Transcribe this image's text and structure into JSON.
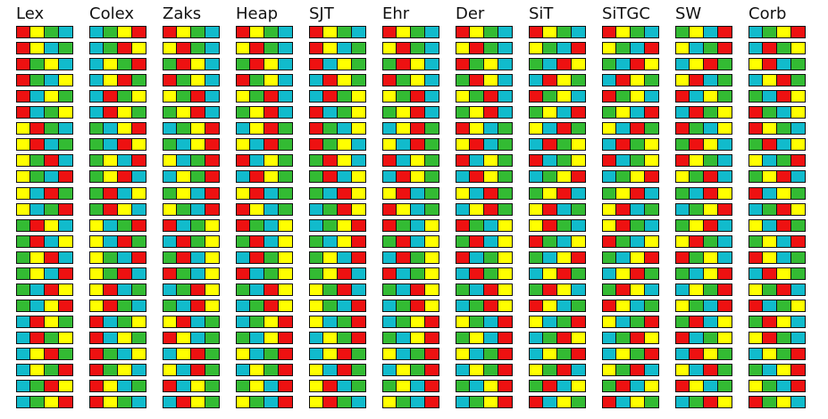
{
  "palette": {
    "R": "#ee1111",
    "Y": "#ffff00",
    "G": "#33bb33",
    "C": "#11bbcc",
    "border": "#111111"
  },
  "columns": [
    {
      "title": "Lex",
      "perms": [
        "RYGC",
        "RYCG",
        "RGYC",
        "RGCY",
        "RCYG",
        "RCGY",
        "YRGC",
        "YRCG",
        "YGRC",
        "YGCR",
        "YCRG",
        "YCGR",
        "GRYC",
        "GRCY",
        "GYRC",
        "GYCR",
        "GCRY",
        "GCYR",
        "CRYG",
        "CRGY",
        "CYRG",
        "CYGR",
        "CGRY",
        "CGYR"
      ]
    },
    {
      "title": "Colex",
      "perms": [
        "CGYR",
        "CGRY",
        "CYGR",
        "CYRG",
        "CRGY",
        "CRYG",
        "GCYR",
        "GCRY",
        "GYCR",
        "GYRC",
        "GRCY",
        "GRYC",
        "YCGR",
        "YCRG",
        "YGCR",
        "YGRC",
        "YRCG",
        "YRGC",
        "RCGY",
        "RCYG",
        "RGCY",
        "RGYC",
        "RYCG",
        "RYGC"
      ]
    },
    {
      "title": "Zaks",
      "perms": [
        "RYGC",
        "YRGC",
        "GRYC",
        "RGYC",
        "YGRC",
        "GYRC",
        "CGYR",
        "GCYR",
        "YCGR",
        "CYGR",
        "GYCR",
        "YGCR",
        "RCGY",
        "CRGY",
        "GRCY",
        "RGCY",
        "CGRY",
        "GCRY",
        "YRCG",
        "RYCG",
        "CYRG",
        "YCRG",
        "RCYG",
        "CRYG"
      ]
    },
    {
      "title": "Heap",
      "perms": [
        "RYGC",
        "YRGC",
        "GRYC",
        "RGYC",
        "YGRC",
        "GYRC",
        "CYRG",
        "YCRG",
        "RCYG",
        "CRYG",
        "YRCG",
        "RYCG",
        "RGCY",
        "GRCY",
        "CRGY",
        "RCGY",
        "GCRY",
        "CGRY",
        "CGYR",
        "GCYR",
        "YCGR",
        "CYGR",
        "GYCR",
        "YGCR"
      ]
    },
    {
      "title": "SJT",
      "perms": [
        "RYGC",
        "RYCG",
        "RCYG",
        "CRYG",
        "CRGY",
        "RCGY",
        "RGCY",
        "RGYC",
        "GRYC",
        "GRCY",
        "GCRY",
        "CGRY",
        "CGYR",
        "GCYR",
        "GYCR",
        "GYRC",
        "YGRC",
        "YGCR",
        "YCGR",
        "CYGR",
        "CYRG",
        "YCRG",
        "YRCG",
        "YRGC"
      ]
    },
    {
      "title": "Ehr",
      "perms": [
        "RYGC",
        "YRGC",
        "GRYC",
        "RGYC",
        "YGRC",
        "GYRC",
        "CYRG",
        "YCRG",
        "RCYG",
        "CRYG",
        "YRCG",
        "RYCG",
        "RGCY",
        "GRCY",
        "CRGY",
        "RCGY",
        "GCRY",
        "CGRY",
        "CGYR",
        "GCYR",
        "YCGR",
        "CYGR",
        "GYCR",
        "YGCR"
      ]
    },
    {
      "title": "Der",
      "perms": [
        "RYGC",
        "YRGC",
        "RGYC",
        "GRYC",
        "YGRC",
        "GYRC",
        "RYCG",
        "YRCG",
        "RCYG",
        "CRYG",
        "YCRG",
        "CYRG",
        "RGCY",
        "GRCY",
        "RCGY",
        "CRGY",
        "GCRY",
        "CGRY",
        "YGCR",
        "GYCR",
        "YCGR",
        "CYGR",
        "GCYR",
        "CGYR"
      ]
    },
    {
      "title": "SiT",
      "perms": [
        "RYGC",
        "YGCR",
        "GCRY",
        "CRYG",
        "RGYC",
        "GYCR",
        "YCRG",
        "CRGY",
        "RCGY",
        "CGYR",
        "GYRC",
        "YRCG",
        "YRGC",
        "RGCY",
        "GCYR",
        "CYRG",
        "GRYC",
        "RYCG",
        "YCGR",
        "CGRY",
        "CYGR",
        "YGRC",
        "GRCY",
        "RCYG"
      ]
    },
    {
      "title": "SiTGC",
      "perms": [
        "RYGC",
        "YGCR",
        "GCRY",
        "CRYG",
        "RGYC",
        "GYCR",
        "YCRG",
        "CRGY",
        "RCGY",
        "CGYR",
        "GYRC",
        "YRCG",
        "YRGC",
        "RGCY",
        "GCYR",
        "CYRG",
        "GRYC",
        "RYCG",
        "YCGR",
        "CGRY",
        "CYGR",
        "YGRC",
        "GRCY",
        "RCYG"
      ]
    },
    {
      "title": "SW",
      "perms": [
        "GYCR",
        "YCGR",
        "CYRG",
        "YRCG",
        "RCYG",
        "CRGY",
        "RGCY",
        "GRYC",
        "RYGC",
        "YGRC",
        "GCRY",
        "CGYR",
        "GYRC",
        "YRGC",
        "RGYC",
        "GCYR",
        "CYGR",
        "YGCR",
        "GRCY",
        "RCGY",
        "CRYG",
        "YCRG",
        "RYCG",
        "CGRY"
      ]
    },
    {
      "title": "Corb",
      "perms": [
        "CGYR",
        "CRGY",
        "YRCG",
        "CYRG",
        "GCRY",
        "RGCY",
        "RYGC",
        "GRCY",
        "YCGR",
        "GYRC",
        "RCYG",
        "CGRY",
        "YCRG",
        "GYCR",
        "RYCG",
        "CRYG",
        "YGRC",
        "RCGY",
        "GRYC",
        "YRGC",
        "CYGR",
        "GCYR",
        "YGCR",
        "RGYC"
      ]
    }
  ]
}
